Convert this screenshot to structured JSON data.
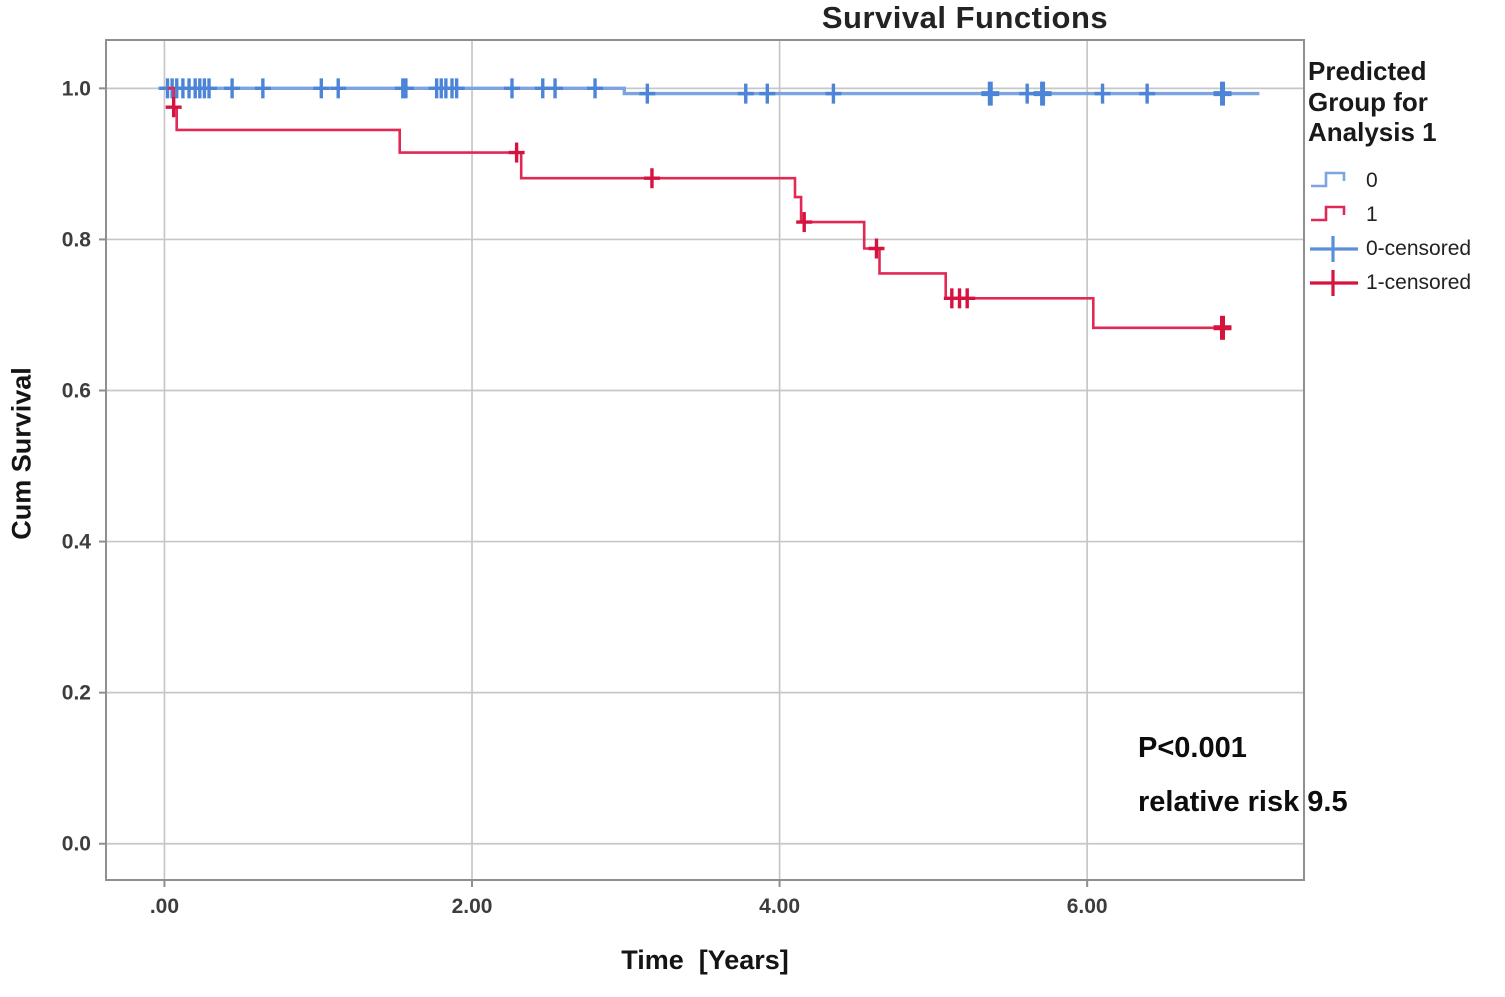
{
  "chart_data": {
    "type": "line",
    "subtype": "kaplan-meier-step",
    "title": "Survival Functions",
    "xlabel": "Time  [Years]",
    "ylabel": "Cum Survival",
    "xlim": [
      -0.38,
      7.41
    ],
    "ylim": [
      -0.048,
      1.064
    ],
    "grid": true,
    "xticks": {
      "values": [
        0,
        2,
        4,
        6
      ],
      "labels": [
        ".00",
        "2.00",
        "4.00",
        "6.00"
      ]
    },
    "yticks": {
      "values": [
        0.0,
        0.2,
        0.4,
        0.6,
        0.8,
        1.0
      ],
      "labels": [
        "0.0",
        "0.2",
        "0.4",
        "0.6",
        "0.8",
        "1.0"
      ]
    },
    "legend": {
      "title": "Predicted Group for Analysis 1",
      "entries": [
        {
          "label": "0",
          "type": "step",
          "color": "#7ba4e0"
        },
        {
          "label": "1",
          "type": "step",
          "color": "#e02a55"
        },
        {
          "label": "0-censored",
          "type": "plus",
          "color": "#5b8fd9"
        },
        {
          "label": "1-censored",
          "type": "plus",
          "color": "#d6123f"
        }
      ],
      "position": "right"
    },
    "annotation": {
      "p_value": "P<0.001",
      "relative_risk": "relative risk 9.5"
    },
    "series": [
      {
        "name": "0",
        "color": "#7ba4e0",
        "censor_color": "#4c85d8",
        "line_width": 3.4,
        "steps": [
          [
            -0.04,
            1.0
          ],
          [
            2.99,
            1.0
          ],
          [
            2.99,
            0.993
          ],
          [
            7.12,
            0.993
          ]
        ],
        "censored": [
          [
            0.02,
            1.0
          ],
          [
            0.05,
            1.0
          ],
          [
            0.08,
            1.0
          ],
          [
            0.12,
            1.0
          ],
          [
            0.16,
            1.0
          ],
          [
            0.2,
            1.0
          ],
          [
            0.23,
            1.0
          ],
          [
            0.26,
            1.0
          ],
          [
            0.29,
            1.0
          ],
          [
            0.44,
            1.0
          ],
          [
            0.64,
            1.0
          ],
          [
            1.02,
            1.0
          ],
          [
            1.13,
            1.0
          ],
          [
            1.55,
            1.0
          ],
          [
            1.57,
            1.0
          ],
          [
            1.77,
            1.0
          ],
          [
            1.8,
            1.0
          ],
          [
            1.83,
            1.0
          ],
          [
            1.87,
            1.0
          ],
          [
            1.9,
            1.0
          ],
          [
            2.26,
            1.0
          ],
          [
            2.46,
            1.0
          ],
          [
            2.54,
            1.0
          ],
          [
            2.8,
            1.0
          ],
          [
            3.14,
            0.993
          ],
          [
            3.78,
            0.993
          ],
          [
            3.92,
            0.993
          ],
          [
            4.35,
            0.993
          ],
          [
            5.61,
            0.993
          ],
          [
            6.1,
            0.993
          ],
          [
            6.39,
            0.993
          ]
        ],
        "bold_censored": [
          [
            5.37,
            0.993
          ],
          [
            5.71,
            0.993
          ],
          [
            6.88,
            0.993
          ]
        ]
      },
      {
        "name": "1",
        "color": "#e02a55",
        "censor_color": "#d6123f",
        "line_width": 2.6,
        "steps": [
          [
            0.02,
            1.0
          ],
          [
            0.06,
            1.0
          ],
          [
            0.06,
            0.975
          ],
          [
            0.08,
            0.975
          ],
          [
            0.08,
            0.945
          ],
          [
            1.53,
            0.945
          ],
          [
            1.53,
            0.915
          ],
          [
            2.32,
            0.915
          ],
          [
            2.32,
            0.881
          ],
          [
            4.1,
            0.881
          ],
          [
            4.1,
            0.856
          ],
          [
            4.14,
            0.856
          ],
          [
            4.14,
            0.823
          ],
          [
            4.55,
            0.823
          ],
          [
            4.55,
            0.788
          ],
          [
            4.65,
            0.788
          ],
          [
            4.65,
            0.755
          ],
          [
            5.08,
            0.755
          ],
          [
            5.08,
            0.722
          ],
          [
            6.04,
            0.722
          ],
          [
            6.04,
            0.683
          ],
          [
            6.93,
            0.683
          ]
        ],
        "censored": [
          [
            0.06,
            0.975
          ],
          [
            2.29,
            0.915
          ],
          [
            3.17,
            0.881
          ],
          [
            4.16,
            0.823
          ],
          [
            4.63,
            0.788
          ],
          [
            5.12,
            0.722
          ],
          [
            5.17,
            0.722
          ],
          [
            5.22,
            0.722
          ]
        ],
        "bold_censored": [
          [
            6.88,
            0.683
          ]
        ]
      }
    ]
  }
}
